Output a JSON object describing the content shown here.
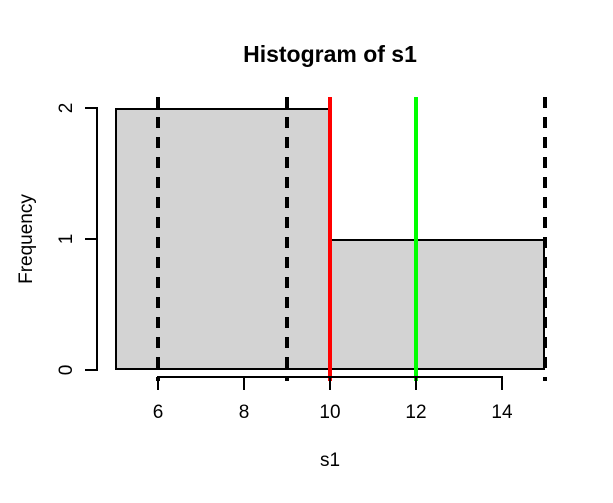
{
  "chart_data": {
    "type": "bar",
    "subtype": "histogram",
    "title": "Histogram of s1",
    "xlabel": "s1",
    "ylabel": "Frequency",
    "bins": {
      "breaks": [
        5,
        10,
        15
      ],
      "counts": [
        2,
        1
      ]
    },
    "x_ticks": [
      6,
      8,
      10,
      12,
      14
    ],
    "y_ticks": [
      0,
      1,
      2
    ],
    "xlim": [
      5,
      15
    ],
    "ylim": [
      0,
      2
    ],
    "grid": "off",
    "legend": "none",
    "bar_fill": "#d3d3d3",
    "bar_border": "#000000",
    "vlines": [
      {
        "x": 6,
        "color": "#000000",
        "style": "dashed",
        "name": "dashed-line-x6"
      },
      {
        "x": 9,
        "color": "#000000",
        "style": "dashed",
        "name": "dashed-line-x9"
      },
      {
        "x": 15,
        "color": "#000000",
        "style": "dashed",
        "name": "dashed-line-x15"
      },
      {
        "x": 10,
        "color": "#ff0000",
        "style": "solid",
        "name": "red-line-x10"
      },
      {
        "x": 12,
        "color": "#00ff00",
        "style": "solid",
        "name": "green-line-x12"
      }
    ]
  }
}
